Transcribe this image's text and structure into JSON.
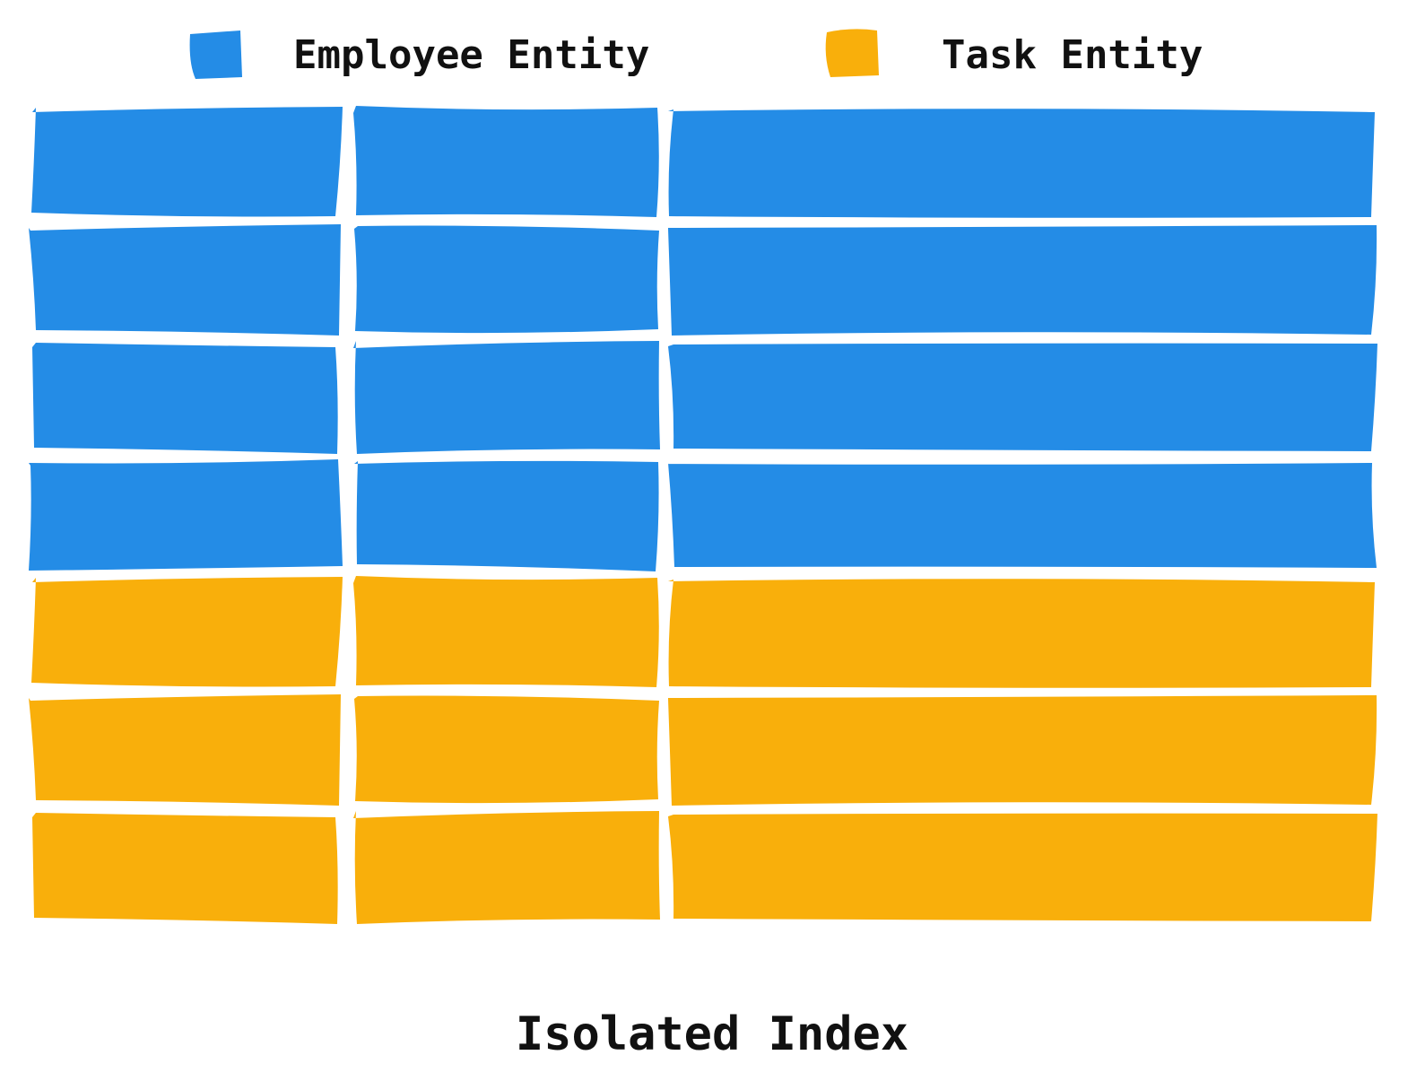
{
  "legend": [
    {
      "key": "employee",
      "label": "Employee Entity",
      "color": "#248CE6"
    },
    {
      "key": "task",
      "label": "Task Entity",
      "color": "#F9AF0B"
    }
  ],
  "rows": [
    "employee",
    "employee",
    "employee",
    "employee",
    "task",
    "task",
    "task"
  ],
  "columns_per_row": 3,
  "caption": "Isolated Index"
}
